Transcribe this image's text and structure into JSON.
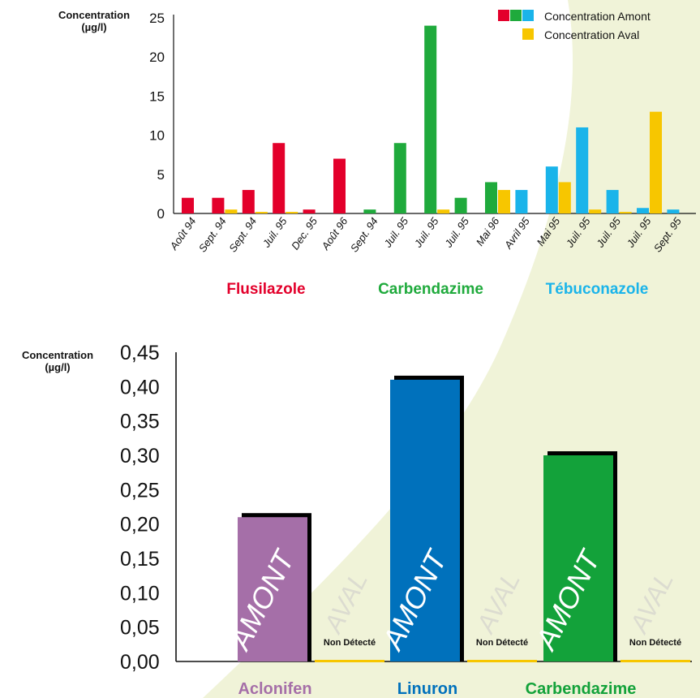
{
  "colors": {
    "flusilazole": "#e3002b",
    "carbendazime": "#1faa3c",
    "tebuconazole": "#1ab4ea",
    "aval": "#f7c600",
    "aclonifen": "#a56fa8",
    "linuron": "#0071bc",
    "carbendazime_dark": "#13a23a",
    "shadow": "#000000",
    "background_swoosh": "#f0f3d8",
    "aval_label": "#dcdcd0",
    "axis": "#111111"
  },
  "chart_data": [
    {
      "type": "bar",
      "ylabel": "Concentration\n(µg/l)",
      "ylim": [
        0,
        25
      ],
      "yticks": [
        "0",
        "5",
        "10",
        "15",
        "20",
        "25"
      ],
      "legend": {
        "placement": "top-right",
        "entries": [
          {
            "label": "Concentration Amont",
            "colors": [
              "#e3002b",
              "#1faa3c",
              "#1ab4ea"
            ]
          },
          {
            "label": "Concentration Aval",
            "colors": [
              "#f7c600"
            ]
          }
        ]
      },
      "categories": [
        "Août 94",
        "Sept. 94",
        "Sept. 94",
        "Juil. 95",
        "Dec. 95",
        "Août 96",
        "Sept. 94",
        "Juil. 95",
        "Juil. 95",
        "Juil. 95",
        "Mai 96",
        "Avril 95",
        "Mai 95",
        "Juil. 95",
        "Juil. 95",
        "Juil. 95",
        "Sept. 95"
      ],
      "amont_values": [
        2,
        2,
        3,
        9,
        0.5,
        7,
        0.5,
        9,
        24,
        2,
        4,
        3,
        6,
        11,
        3,
        0.7,
        0.5
      ],
      "aval_values": [
        0,
        0.5,
        0.2,
        0.2,
        0,
        0,
        0,
        0,
        0.5,
        0,
        3,
        0,
        4,
        0.5,
        0.2,
        13,
        0
      ],
      "groups": [
        {
          "name": "Flusilazole",
          "color": "#e3002b",
          "indices": [
            0,
            1,
            2,
            3,
            4,
            5
          ]
        },
        {
          "name": "Carbendazime",
          "color": "#1faa3c",
          "indices": [
            6,
            7,
            8,
            9,
            10
          ]
        },
        {
          "name": "Tébuconazole",
          "color": "#1ab4ea",
          "indices": [
            11,
            12,
            13,
            14,
            15,
            16
          ]
        }
      ]
    },
    {
      "type": "bar",
      "ylabel": "Concentration\n(µg/l)",
      "ylim": [
        0,
        0.45
      ],
      "yticks": [
        "0,00",
        "0,05",
        "0,10",
        "0,15",
        "0,20",
        "0,25",
        "0,30",
        "0,35",
        "0,40",
        "0,45"
      ],
      "categories": [
        "Aclonifen",
        "Linuron",
        "Carbendazime"
      ],
      "series": [
        {
          "name": "AMONT",
          "values": [
            0.21,
            0.41,
            0.3
          ]
        },
        {
          "name": "AVAL",
          "values": [
            0,
            0,
            0
          ],
          "note": "Non Détecté"
        }
      ],
      "category_colors": [
        "#a56fa8",
        "#0071bc",
        "#13a23a"
      ]
    }
  ]
}
